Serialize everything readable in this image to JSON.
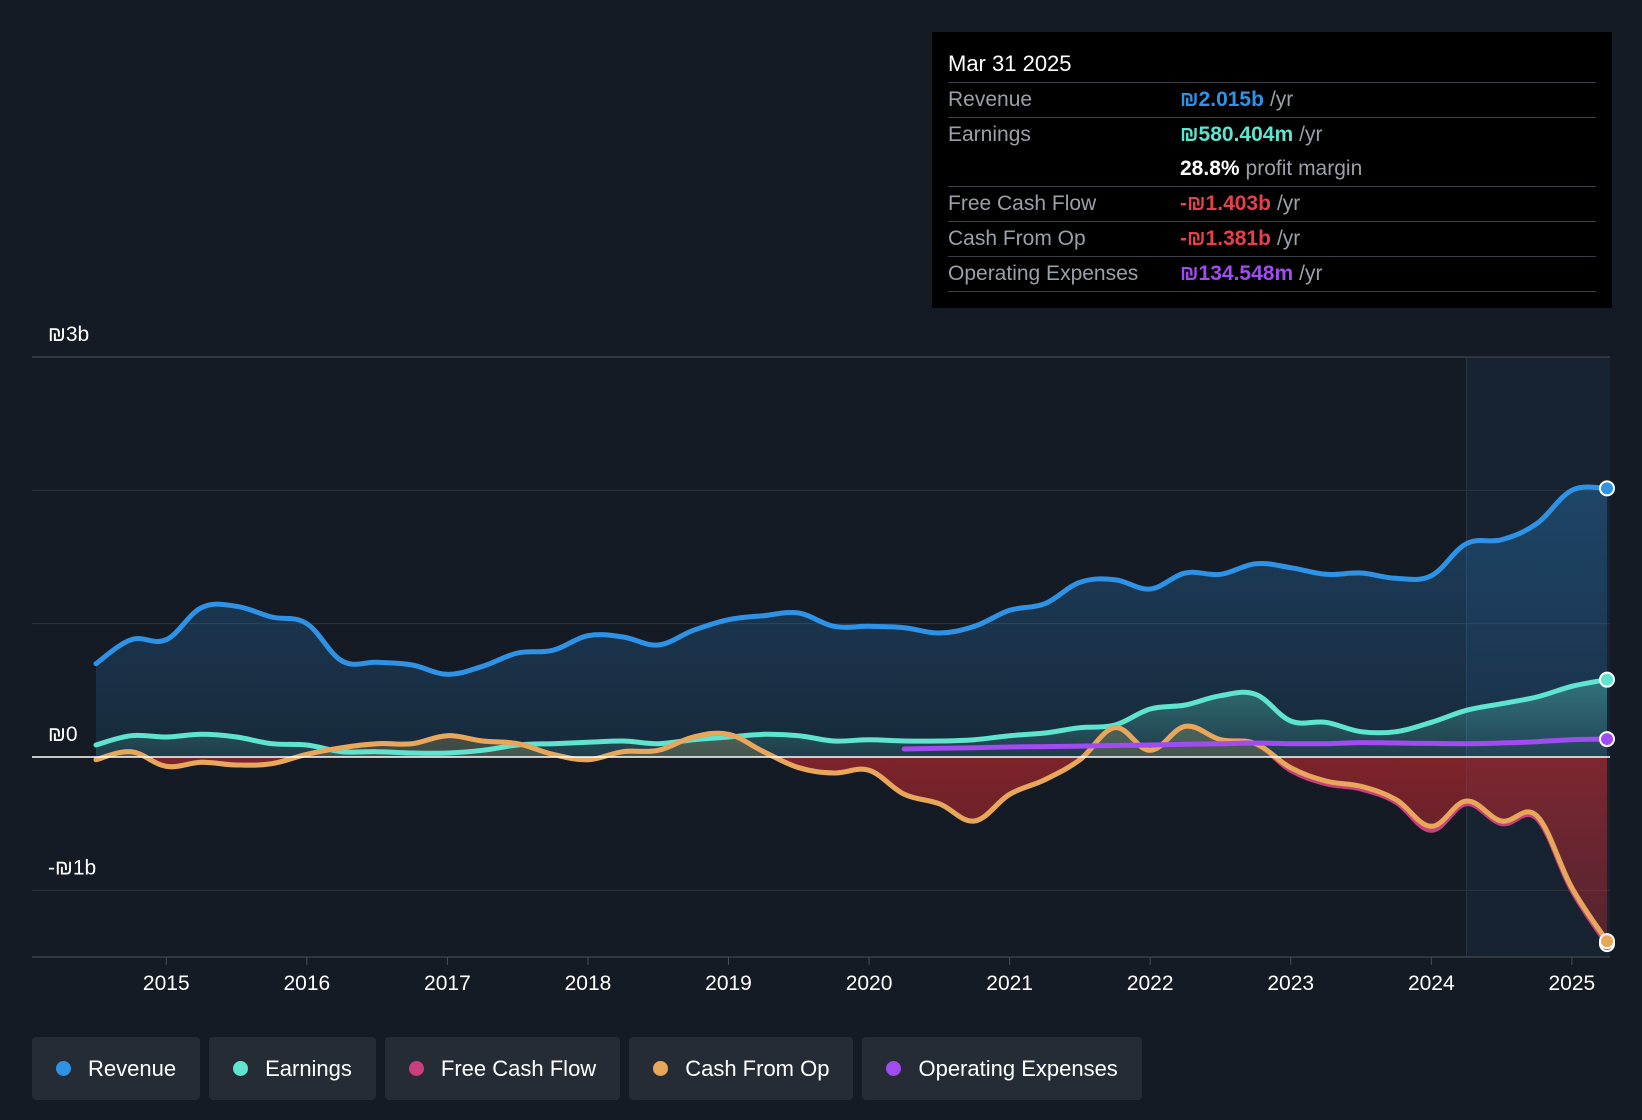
{
  "tooltip": {
    "date": "Mar 31 2025",
    "rows": [
      {
        "label": "Revenue",
        "value": "₪2.015b",
        "unit": "/yr",
        "color": "#2e93e6"
      },
      {
        "label": "Earnings",
        "value": "₪580.404m",
        "unit": "/yr",
        "color": "#5ee4cf"
      },
      {
        "label": "",
        "value": "28.8%",
        "unit": "profit margin",
        "color": "#ffffff"
      },
      {
        "label": "Free Cash Flow",
        "value": "-₪1.403b",
        "unit": "/yr",
        "color": "#e8404a"
      },
      {
        "label": "Cash From Op",
        "value": "-₪1.381b",
        "unit": "/yr",
        "color": "#e8404a"
      },
      {
        "label": "Operating Expenses",
        "value": "₪134.548m",
        "unit": "/yr",
        "color": "#a04cf0"
      }
    ]
  },
  "legend": [
    {
      "label": "Revenue",
      "color": "#2e93e6"
    },
    {
      "label": "Earnings",
      "color": "#5ee4cf"
    },
    {
      "label": "Free Cash Flow",
      "color": "#c93f7d"
    },
    {
      "label": "Cash From Op",
      "color": "#e8a85a"
    },
    {
      "label": "Operating Expenses",
      "color": "#a04cf0"
    }
  ],
  "chart_data": {
    "type": "area",
    "title": "",
    "xlabel": "",
    "ylabel": "",
    "units": "₪ billions",
    "ylim": [
      -1.5,
      3.0
    ],
    "y_tick_labels": [
      {
        "value": 3,
        "label": "₪3b"
      },
      {
        "value": 0,
        "label": "₪0"
      },
      {
        "value": -1,
        "label": "-₪1b"
      }
    ],
    "gridlines": [
      3.0,
      2.0,
      1.0,
      0.0,
      -1.0,
      -1.5
    ],
    "xlim": [
      2014.5,
      2025.25
    ],
    "x_ticks": [
      2015,
      2016,
      2017,
      2018,
      2019,
      2020,
      2021,
      2022,
      2023,
      2024,
      2025
    ],
    "x_tick_labels": [
      "2015",
      "2016",
      "2017",
      "2018",
      "2019",
      "2020",
      "2021",
      "2022",
      "2023",
      "2024",
      "2025"
    ],
    "forecast_band_start": 2024.25,
    "series": [
      {
        "name": "Revenue",
        "color": "#2e93e6",
        "fill": true,
        "x": [
          2014.5,
          2014.75,
          2015.0,
          2015.25,
          2015.5,
          2015.75,
          2016.0,
          2016.25,
          2016.5,
          2016.75,
          2017.0,
          2017.25,
          2017.5,
          2017.75,
          2018.0,
          2018.25,
          2018.5,
          2018.75,
          2019.0,
          2019.25,
          2019.5,
          2019.75,
          2020.0,
          2020.25,
          2020.5,
          2020.75,
          2021.0,
          2021.25,
          2021.5,
          2021.75,
          2022.0,
          2022.25,
          2022.5,
          2022.75,
          2023.0,
          2023.25,
          2023.5,
          2023.75,
          2024.0,
          2024.25,
          2024.5,
          2024.75,
          2025.0,
          2025.25
        ],
        "values": [
          0.7,
          0.88,
          0.88,
          1.12,
          1.13,
          1.05,
          1.0,
          0.72,
          0.71,
          0.69,
          0.62,
          0.68,
          0.78,
          0.8,
          0.91,
          0.9,
          0.84,
          0.95,
          1.03,
          1.06,
          1.08,
          0.98,
          0.98,
          0.97,
          0.93,
          0.98,
          1.1,
          1.15,
          1.31,
          1.33,
          1.26,
          1.38,
          1.37,
          1.45,
          1.42,
          1.37,
          1.38,
          1.34,
          1.36,
          1.6,
          1.63,
          1.75,
          2.0,
          2.015
        ]
      },
      {
        "name": "Earnings",
        "color": "#5ee4cf",
        "fill": true,
        "x": [
          2014.5,
          2014.75,
          2015.0,
          2015.25,
          2015.5,
          2015.75,
          2016.0,
          2016.25,
          2016.5,
          2016.75,
          2017.0,
          2017.25,
          2017.5,
          2017.75,
          2018.0,
          2018.25,
          2018.5,
          2018.75,
          2019.0,
          2019.25,
          2019.5,
          2019.75,
          2020.0,
          2020.25,
          2020.5,
          2020.75,
          2021.0,
          2021.25,
          2021.5,
          2021.75,
          2022.0,
          2022.25,
          2022.5,
          2022.75,
          2023.0,
          2023.25,
          2023.5,
          2023.75,
          2024.0,
          2024.25,
          2024.5,
          2024.75,
          2025.0,
          2025.25
        ],
        "values": [
          0.09,
          0.16,
          0.15,
          0.17,
          0.15,
          0.1,
          0.09,
          0.04,
          0.04,
          0.03,
          0.03,
          0.05,
          0.09,
          0.1,
          0.11,
          0.12,
          0.1,
          0.13,
          0.15,
          0.17,
          0.16,
          0.12,
          0.13,
          0.12,
          0.12,
          0.13,
          0.16,
          0.18,
          0.22,
          0.24,
          0.36,
          0.39,
          0.46,
          0.47,
          0.27,
          0.26,
          0.19,
          0.19,
          0.26,
          0.35,
          0.4,
          0.45,
          0.53,
          0.58
        ]
      },
      {
        "name": "Free Cash Flow",
        "color": "#c93f7d",
        "fill": true,
        "x": [
          2014.5,
          2014.75,
          2015.0,
          2015.25,
          2015.5,
          2015.75,
          2016.0,
          2016.25,
          2016.5,
          2016.75,
          2017.0,
          2017.25,
          2017.5,
          2017.75,
          2018.0,
          2018.25,
          2018.5,
          2018.75,
          2019.0,
          2019.25,
          2019.5,
          2019.75,
          2020.0,
          2020.25,
          2020.5,
          2020.75,
          2021.0,
          2021.25,
          2021.5,
          2021.75,
          2022.0,
          2022.25,
          2022.5,
          2022.75,
          2023.0,
          2023.25,
          2023.5,
          2023.75,
          2024.0,
          2024.25,
          2024.5,
          2024.75,
          2025.0,
          2025.25
        ],
        "values": [
          -0.02,
          0.04,
          -0.07,
          -0.04,
          -0.06,
          -0.05,
          0.02,
          0.07,
          0.1,
          0.1,
          0.16,
          0.12,
          0.1,
          0.02,
          -0.02,
          0.04,
          0.05,
          0.15,
          0.17,
          0.04,
          -0.08,
          -0.12,
          -0.1,
          -0.28,
          -0.35,
          -0.48,
          -0.28,
          -0.17,
          -0.02,
          0.22,
          0.05,
          0.23,
          0.13,
          0.1,
          -0.1,
          -0.2,
          -0.24,
          -0.34,
          -0.55,
          -0.35,
          -0.5,
          -0.46,
          -1.0,
          -1.403
        ]
      },
      {
        "name": "Cash From Op",
        "color": "#e8a85a",
        "fill": false,
        "x": [
          2014.5,
          2014.75,
          2015.0,
          2015.25,
          2015.5,
          2015.75,
          2016.0,
          2016.25,
          2016.5,
          2016.75,
          2017.0,
          2017.25,
          2017.5,
          2017.75,
          2018.0,
          2018.25,
          2018.5,
          2018.75,
          2019.0,
          2019.25,
          2019.5,
          2019.75,
          2020.0,
          2020.25,
          2020.5,
          2020.75,
          2021.0,
          2021.25,
          2021.5,
          2021.75,
          2022.0,
          2022.25,
          2022.5,
          2022.75,
          2023.0,
          2023.25,
          2023.5,
          2023.75,
          2024.0,
          2024.25,
          2024.5,
          2024.75,
          2025.0,
          2025.25
        ],
        "values": [
          -0.02,
          0.04,
          -0.07,
          -0.04,
          -0.06,
          -0.05,
          0.02,
          0.07,
          0.1,
          0.1,
          0.16,
          0.12,
          0.1,
          0.02,
          -0.02,
          0.04,
          0.05,
          0.15,
          0.17,
          0.04,
          -0.08,
          -0.12,
          -0.1,
          -0.28,
          -0.35,
          -0.48,
          -0.28,
          -0.17,
          -0.02,
          0.22,
          0.05,
          0.23,
          0.13,
          0.1,
          -0.08,
          -0.18,
          -0.22,
          -0.32,
          -0.52,
          -0.33,
          -0.48,
          -0.44,
          -0.98,
          -1.381
        ]
      },
      {
        "name": "Operating Expenses",
        "color": "#a04cf0",
        "fill": false,
        "x": [
          2020.25,
          2020.5,
          2020.75,
          2021.0,
          2021.25,
          2021.5,
          2021.75,
          2022.0,
          2022.25,
          2022.5,
          2022.75,
          2023.0,
          2023.25,
          2023.5,
          2023.75,
          2024.0,
          2024.25,
          2024.5,
          2024.75,
          2025.0,
          2025.25
        ],
        "values": [
          0.06,
          0.065,
          0.07,
          0.075,
          0.078,
          0.082,
          0.086,
          0.09,
          0.095,
          0.1,
          0.105,
          0.1,
          0.1,
          0.108,
          0.105,
          0.102,
          0.1,
          0.105,
          0.115,
          0.13,
          0.1345
        ]
      }
    ]
  }
}
